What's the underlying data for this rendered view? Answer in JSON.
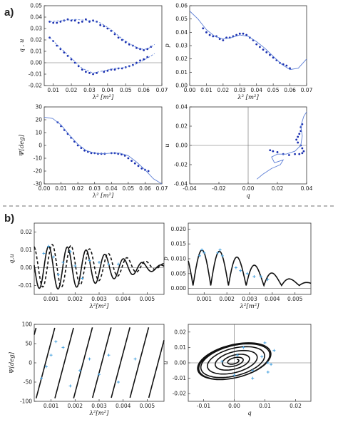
{
  "labels": {
    "panel_a": "a)",
    "panel_b": "b)"
  },
  "colors": {
    "data": "#1a2fb0",
    "model_a": "#5d7fd6",
    "model_b": "#111111",
    "data_b": "#4aa3df"
  },
  "chart_data": [
    {
      "id": "a1",
      "type": "scatter",
      "xlabel": "λ² [m²]",
      "ylabel": "q , u",
      "xlim": [
        0.005,
        0.07
      ],
      "ylim": [
        -0.02,
        0.05
      ],
      "xticks": [
        0.01,
        0.02,
        0.03,
        0.04,
        0.05,
        0.06,
        0.07
      ],
      "xticklabels": [
        "0.01",
        "0.02",
        "0.03",
        "0.04",
        "0.05",
        "0.06",
        "0.07"
      ],
      "yticks": [
        -0.02,
        -0.01,
        0.0,
        0.01,
        0.02,
        0.03,
        0.04,
        0.05
      ],
      "yticklabels": [
        "-0.02",
        "-0.01",
        "0.00",
        "0.01",
        "0.02",
        "0.03",
        "0.04",
        "0.05"
      ],
      "hline": 0,
      "series": [
        {
          "style": "dots",
          "x": [
            0.008,
            0.01,
            0.012,
            0.014,
            0.016,
            0.018,
            0.02,
            0.022,
            0.024,
            0.026,
            0.028,
            0.03,
            0.032,
            0.034,
            0.036,
            0.038,
            0.04,
            0.042,
            0.044,
            0.046,
            0.048,
            0.05,
            0.052,
            0.054,
            0.056,
            0.058,
            0.06,
            0.062,
            0.064
          ],
          "y": [
            0.036,
            0.035,
            0.035,
            0.036,
            0.037,
            0.038,
            0.037,
            0.037,
            0.035,
            0.036,
            0.038,
            0.036,
            0.037,
            0.036,
            0.033,
            0.032,
            0.03,
            0.028,
            0.025,
            0.022,
            0.02,
            0.018,
            0.016,
            0.015,
            0.013,
            0.012,
            0.011,
            0.012,
            0.014
          ]
        },
        {
          "style": "dashed",
          "x": [
            0.008,
            0.015,
            0.022,
            0.03,
            0.036,
            0.042,
            0.048,
            0.054,
            0.058,
            0.062,
            0.066
          ],
          "y": [
            0.036,
            0.037,
            0.038,
            0.037,
            0.035,
            0.029,
            0.021,
            0.015,
            0.012,
            0.012,
            0.016
          ]
        },
        {
          "style": "dots",
          "x": [
            0.008,
            0.01,
            0.012,
            0.014,
            0.016,
            0.018,
            0.02,
            0.022,
            0.024,
            0.026,
            0.028,
            0.03,
            0.032,
            0.034,
            0.038,
            0.04,
            0.042,
            0.044,
            0.046,
            0.048,
            0.05,
            0.052,
            0.054,
            0.056,
            0.058,
            0.06,
            0.062
          ],
          "y": [
            0.022,
            0.019,
            0.015,
            0.012,
            0.009,
            0.006,
            0.003,
            0.0,
            -0.003,
            -0.006,
            -0.008,
            -0.009,
            -0.01,
            -0.009,
            -0.008,
            -0.007,
            -0.006,
            -0.006,
            -0.005,
            -0.005,
            -0.004,
            -0.003,
            -0.002,
            0.0,
            0.002,
            0.003,
            0.005
          ]
        },
        {
          "style": "dashed",
          "x": [
            0.008,
            0.014,
            0.02,
            0.026,
            0.032,
            0.038,
            0.044,
            0.05,
            0.056,
            0.062,
            0.066
          ],
          "y": [
            0.022,
            0.013,
            0.004,
            -0.005,
            -0.009,
            -0.007,
            -0.005,
            -0.004,
            -0.001,
            0.004,
            0.008
          ]
        }
      ]
    },
    {
      "id": "a2",
      "type": "scatter",
      "xlabel": "λ² [m²]",
      "ylabel": "p",
      "xlim": [
        0.0,
        0.07
      ],
      "ylim": [
        0.0,
        0.06
      ],
      "xticks": [
        0,
        0.01,
        0.02,
        0.03,
        0.04,
        0.05,
        0.06,
        0.07
      ],
      "xticklabels": [
        "0.00",
        "0.01",
        "0.02",
        "0.03",
        "0.04",
        "0.05",
        "0.06",
        "0.07"
      ],
      "yticks": [
        0,
        0.01,
        0.02,
        0.03,
        0.04,
        0.05,
        0.06
      ],
      "yticklabels": [
        "0.00",
        "0.01",
        "0.02",
        "0.03",
        "0.04",
        "0.05",
        "0.06"
      ],
      "series": [
        {
          "style": "dots",
          "x": [
            0.008,
            0.01,
            0.012,
            0.014,
            0.016,
            0.018,
            0.02,
            0.022,
            0.024,
            0.026,
            0.028,
            0.03,
            0.032,
            0.034,
            0.036,
            0.038,
            0.04,
            0.042,
            0.044,
            0.046,
            0.048,
            0.05,
            0.052,
            0.054,
            0.056,
            0.058,
            0.06
          ],
          "y": [
            0.043,
            0.04,
            0.038,
            0.037,
            0.037,
            0.035,
            0.034,
            0.036,
            0.036,
            0.037,
            0.038,
            0.039,
            0.039,
            0.038,
            0.036,
            0.034,
            0.031,
            0.029,
            0.027,
            0.025,
            0.023,
            0.021,
            0.019,
            0.017,
            0.016,
            0.015,
            0.013
          ]
        },
        {
          "style": "line",
          "x": [
            0.0,
            0.005,
            0.01,
            0.015,
            0.02,
            0.025,
            0.03,
            0.035,
            0.04,
            0.045,
            0.05,
            0.055,
            0.06,
            0.065,
            0.07
          ],
          "y": [
            0.056,
            0.05,
            0.042,
            0.037,
            0.035,
            0.036,
            0.038,
            0.037,
            0.033,
            0.028,
            0.022,
            0.016,
            0.012,
            0.013,
            0.02
          ]
        }
      ]
    },
    {
      "id": "a3",
      "type": "scatter",
      "xlabel": "λ² [m²]",
      "ylabel": "Ψ[deg]",
      "xlim": [
        0.0,
        0.07
      ],
      "ylim": [
        -30,
        30
      ],
      "xticks": [
        0,
        0.01,
        0.02,
        0.03,
        0.04,
        0.05,
        0.06,
        0.07
      ],
      "xticklabels": [
        "0.00",
        "0.01",
        "0.02",
        "0.03",
        "0.04",
        "0.05",
        "0.06",
        "0.07"
      ],
      "yticks": [
        -30,
        -20,
        -10,
        0,
        10,
        20,
        30
      ],
      "yticklabels": [
        "-30",
        "-20",
        "-10",
        "0",
        "10",
        "20",
        "30"
      ],
      "series": [
        {
          "style": "dots",
          "x": [
            0.008,
            0.01,
            0.012,
            0.014,
            0.016,
            0.018,
            0.02,
            0.022,
            0.024,
            0.026,
            0.028,
            0.03,
            0.032,
            0.034,
            0.036,
            0.04,
            0.042,
            0.044,
            0.046,
            0.048,
            0.05,
            0.052,
            0.054,
            0.056,
            0.058,
            0.06,
            0.062
          ],
          "y": [
            18,
            15,
            12,
            9,
            6,
            3,
            0,
            -2,
            -4,
            -5,
            -6,
            -6,
            -6.5,
            -6.5,
            -6.5,
            -6,
            -6,
            -6.5,
            -7,
            -8,
            -10,
            -12,
            -14,
            -16,
            -18,
            -19,
            -20
          ]
        },
        {
          "style": "line",
          "x": [
            0.0,
            0.005,
            0.01,
            0.015,
            0.02,
            0.025,
            0.03,
            0.035,
            0.04,
            0.045,
            0.05,
            0.055,
            0.06,
            0.065,
            0.07
          ],
          "y": [
            22,
            21,
            16,
            8,
            1,
            -4,
            -6,
            -6.5,
            -6,
            -6,
            -8,
            -13,
            -19,
            -26,
            -31
          ]
        }
      ]
    },
    {
      "id": "a4",
      "type": "scatter",
      "xlabel": "q",
      "ylabel": "u",
      "xlim": [
        -0.04,
        0.04
      ],
      "ylim": [
        -0.04,
        0.04
      ],
      "xticks": [
        -0.04,
        -0.02,
        0.0,
        0.02,
        0.04
      ],
      "xticklabels": [
        "-0.04",
        "-0.02",
        "0.00",
        "0.02",
        "0.04"
      ],
      "yticks": [
        -0.04,
        -0.02,
        0.0,
        0.02,
        0.04
      ],
      "yticklabels": [
        "-0.04",
        "-0.02",
        "0.00",
        "0.02",
        "0.04"
      ],
      "hline": 0,
      "vline": 0,
      "series": [
        {
          "style": "dots",
          "x": [
            0.037,
            0.036,
            0.036,
            0.035,
            0.034,
            0.033,
            0.034,
            0.036,
            0.037,
            0.038,
            0.037,
            0.035,
            0.032,
            0.028,
            0.024,
            0.02,
            0.017,
            0.015
          ],
          "y": [
            0.022,
            0.019,
            0.015,
            0.012,
            0.009,
            0.006,
            0.003,
            0.0,
            -0.003,
            -0.006,
            -0.008,
            -0.009,
            -0.009,
            -0.01,
            -0.009,
            -0.007,
            -0.006,
            -0.005
          ]
        },
        {
          "style": "line",
          "x": [
            0.04,
            0.038,
            0.036,
            0.037,
            0.036,
            0.032,
            0.026,
            0.02,
            0.016,
            0.018,
            0.024,
            0.022,
            0.016,
            0.01,
            0.006
          ],
          "y": [
            0.035,
            0.03,
            0.02,
            0.01,
            0.0,
            -0.006,
            -0.009,
            -0.009,
            -0.012,
            -0.018,
            -0.015,
            -0.02,
            -0.024,
            -0.03,
            -0.035
          ]
        }
      ]
    },
    {
      "id": "b1",
      "type": "line",
      "xlabel": "λ²[m²]",
      "ylabel": "q,u",
      "xlim": [
        0.0003,
        0.0057
      ],
      "ylim": [
        -0.015,
        0.025
      ],
      "xticks": [
        0.001,
        0.002,
        0.003,
        0.004,
        0.005
      ],
      "xticklabels": [
        "0.001",
        "0.002",
        "0.003",
        "0.004",
        "0.005"
      ],
      "yticks": [
        -0.01,
        0.0,
        0.01,
        0.02
      ],
      "yticklabels": [
        "-0.01",
        "0.00",
        "0.01",
        "0.02"
      ],
      "hline": 0,
      "series": [
        {
          "style": "solid",
          "fn": "q"
        },
        {
          "style": "dashed",
          "fn": "u"
        },
        {
          "style": "points",
          "x": [
            0.0007,
            0.0009,
            0.0011,
            0.0013,
            0.0015,
            0.0018,
            0.002,
            0.0023,
            0.0026,
            0.003,
            0.0034,
            0.0038
          ],
          "y": [
            0.008,
            0.012,
            0.006,
            -0.004,
            0.003,
            0.009,
            0.001,
            -0.006,
            0.004,
            0.003,
            0.002,
            0.002
          ]
        }
      ]
    },
    {
      "id": "b2",
      "type": "line",
      "xlabel": "λ²[m²]",
      "ylabel": "p",
      "xlim": [
        0.0003,
        0.0057
      ],
      "ylim": [
        -0.002,
        0.022
      ],
      "xticks": [
        0.001,
        0.002,
        0.003,
        0.004,
        0.005
      ],
      "xticklabels": [
        "0.001",
        "0.002",
        "0.003",
        "0.004",
        "0.005"
      ],
      "yticks": [
        0.0,
        0.005,
        0.01,
        0.015,
        0.02
      ],
      "yticklabels": [
        "0.000",
        "0.005",
        "0.010",
        "0.015",
        "0.020"
      ],
      "hline": 0,
      "series": [
        {
          "style": "solid",
          "fn": "p"
        },
        {
          "style": "points",
          "x": [
            0.0008,
            0.0009,
            0.001,
            0.0016,
            0.0017,
            0.0018,
            0.0024,
            0.0026,
            0.0029,
            0.0032,
            0.0035,
            0.0038
          ],
          "y": [
            0.011,
            0.013,
            0.012,
            0.012,
            0.013,
            0.011,
            0.007,
            0.006,
            0.005,
            0.004,
            0.004,
            0.003
          ]
        }
      ]
    },
    {
      "id": "b3",
      "type": "line",
      "xlabel": "λ²[m²]",
      "ylabel": "Ψ[deg]",
      "xlim": [
        0.0003,
        0.0057
      ],
      "ylim": [
        -100,
        100
      ],
      "xticks": [
        0.001,
        0.002,
        0.003,
        0.004,
        0.005
      ],
      "xticklabels": [
        "0.001",
        "0.002",
        "0.003",
        "0.004",
        "0.005"
      ],
      "yticks": [
        -100,
        -50,
        0,
        50,
        100
      ],
      "yticklabels": [
        "-100",
        "-50",
        "0",
        "50",
        "100"
      ],
      "series": [
        {
          "style": "solid",
          "fn": "psi"
        },
        {
          "style": "points",
          "x": [
            0.0006,
            0.0008,
            0.001,
            0.0012,
            0.0015,
            0.0018,
            0.0022,
            0.0026,
            0.003,
            0.0034,
            0.0038,
            0.0045
          ],
          "y": [
            -40,
            -10,
            20,
            55,
            40,
            -60,
            -20,
            10,
            -30,
            20,
            -50,
            10
          ]
        }
      ]
    },
    {
      "id": "b4",
      "type": "line",
      "xlabel": "q",
      "ylabel": "u",
      "xlim": [
        -0.015,
        0.025
      ],
      "ylim": [
        -0.025,
        0.025
      ],
      "xticks": [
        -0.01,
        0.0,
        0.01,
        0.02
      ],
      "xticklabels": [
        "-0.01",
        "0.00",
        "0.01",
        "0.02"
      ],
      "yticks": [
        -0.02,
        -0.01,
        0.0,
        0.01,
        0.02
      ],
      "yticklabels": [
        "-0.02",
        "-0.01",
        "0.00",
        "0.01",
        "0.02"
      ],
      "hline": 0,
      "vline": 0,
      "series": [
        {
          "style": "solid",
          "fn": "qu"
        },
        {
          "style": "points",
          "x": [
            0.009,
            0.012,
            0.011,
            0.006,
            0.0,
            -0.004,
            0.003,
            0.01,
            0.013,
            0.011,
            0.006,
            0.001
          ],
          "y": [
            0.004,
            -0.001,
            -0.006,
            -0.01,
            -0.008,
            0.001,
            0.01,
            0.013,
            0.008,
            0.0,
            -0.005,
            0.005
          ]
        }
      ]
    }
  ]
}
